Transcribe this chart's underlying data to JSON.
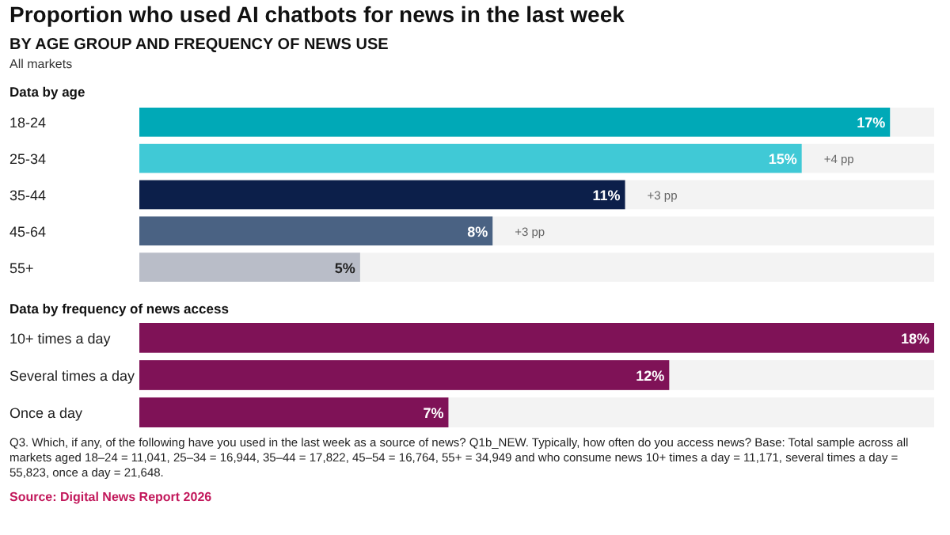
{
  "chart_data": [
    {
      "type": "bar",
      "orientation": "horizontal",
      "title": "Proportion who used AI chatbots for news in the last week",
      "subtitle": "BY AGE GROUP AND FREQUENCY OF NEWS USE",
      "categories": [
        "18-24",
        "25-34",
        "35-44",
        "45-64",
        "55+"
      ],
      "values": [
        17,
        15,
        11,
        8,
        5
      ],
      "colors": [
        "#00a9b7",
        "#40c9d6",
        "#0c1f4a",
        "#4a6283",
        "#b9bdc8"
      ],
      "value_labels": [
        "17%",
        "15%",
        "11%",
        "8%",
        "5%"
      ],
      "xlim": [
        0,
        18
      ],
      "annotations": [
        "All markets",
        "Data by age",
        {
          "text": "+4 pp",
          "x": 15,
          "y": "25-34"
        },
        {
          "text": "+3 pp",
          "x": 11,
          "y": "35-44"
        },
        {
          "text": "+3 pp",
          "x": 8,
          "y": "45-64"
        }
      ]
    },
    {
      "type": "bar",
      "orientation": "horizontal",
      "title": "Data by frequency of news access",
      "categories": [
        "10+ times a day",
        "Several times a day",
        "Once a day"
      ],
      "values": [
        18,
        12,
        7
      ],
      "color": "#7f1257",
      "value_labels": [
        "18%",
        "12%",
        "7%"
      ],
      "xlim": [
        0,
        18
      ],
      "annotations": [
        "Q3. Which, if any, of the following have you used in the last week as a source of news? Q1b_NEW. Typically, how often do you access news? Base: Total sample across all markets aged 18–24 = 11,041, 25–34 = 16,944, 35–44 = 17,822, 45–54 = 16,764, 55+ = 34,949 and who consume news 10+ times a day = 11,171, several times a day = 55,823, once a day = 21,648.",
        "Source: Digital News Report 2026"
      ]
    }
  ]
}
